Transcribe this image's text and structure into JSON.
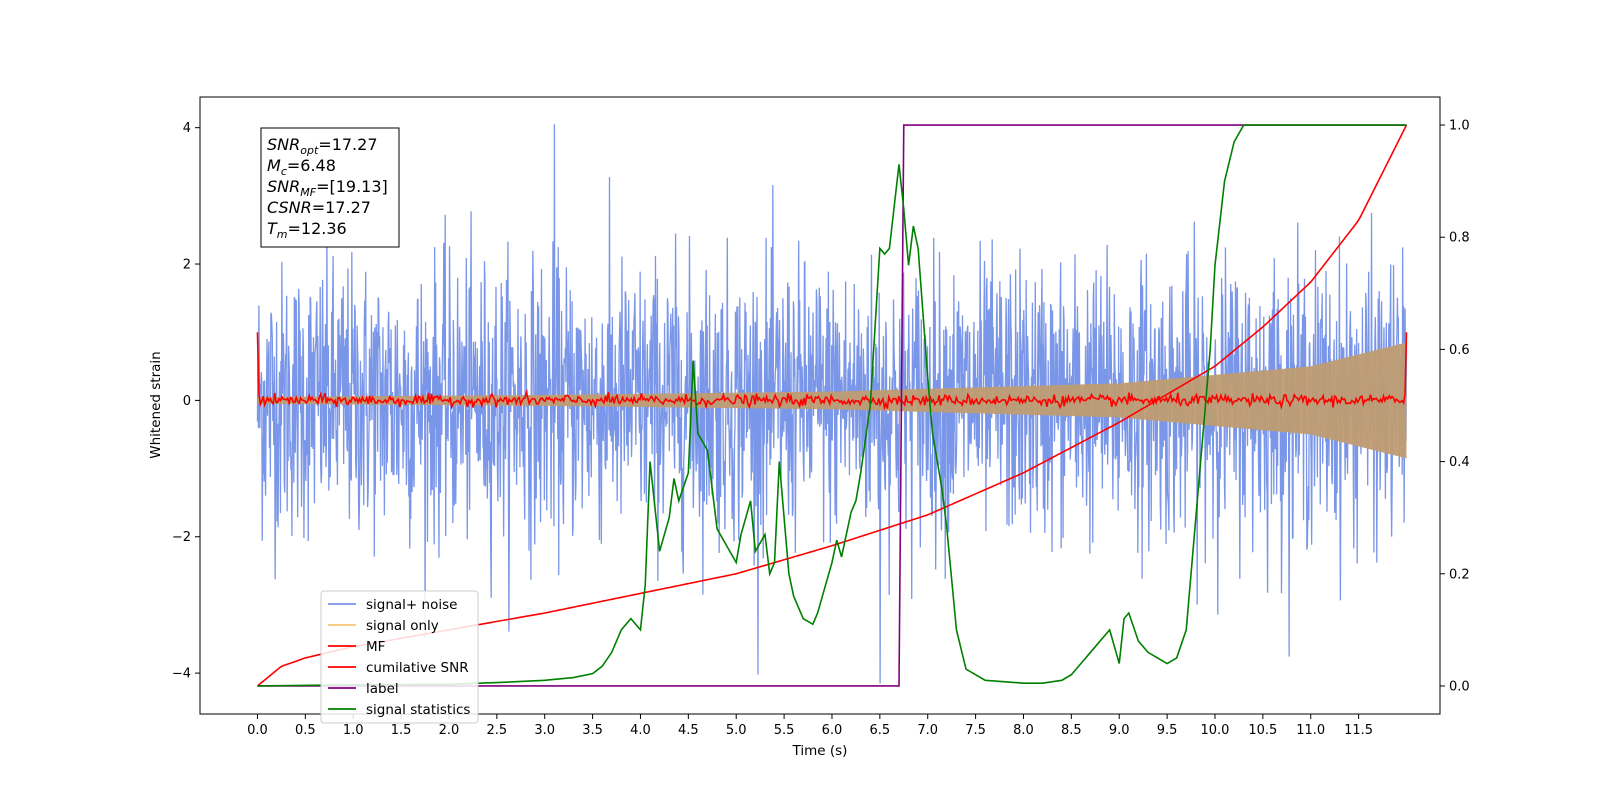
{
  "chart_data": {
    "type": "line",
    "title": "",
    "xlabel": "Time (s)",
    "ylabel": "Whitened strain",
    "y2label": "",
    "xlim": [
      -0.6,
      12.35
    ],
    "ylim": [
      -4.6,
      4.45
    ],
    "y2lim": [
      -0.05,
      1.05
    ],
    "x_ticks": [
      "0.0",
      "0.5",
      "1.0",
      "1.5",
      "2.0",
      "2.5",
      "3.0",
      "3.5",
      "4.0",
      "4.5",
      "5.0",
      "5.5",
      "6.0",
      "6.5",
      "7.0",
      "7.5",
      "8.0",
      "8.5",
      "9.0",
      "9.5",
      "10.0",
      "10.5",
      "11.0",
      "11.5"
    ],
    "y_ticks": [
      "4",
      "2",
      "0",
      "−2",
      "−4"
    ],
    "y2_ticks": [
      "1.0",
      "0.8",
      "0.6",
      "0.4",
      "0.2",
      "0.0"
    ],
    "grid": false,
    "legend_position": "lower-left",
    "annotation": {
      "lines": [
        {
          "var": "SNR",
          "sub": "opt",
          "value": "=17.27"
        },
        {
          "var": "M",
          "sub": "c",
          "value": "=6.48"
        },
        {
          "var": "SNR",
          "sub": "MF",
          "value": "=[19.13]"
        },
        {
          "var": "CSNR",
          "sub": "",
          "value": "=17.27"
        },
        {
          "var": "T",
          "sub": "m",
          "value": "=12.36"
        }
      ]
    },
    "series": [
      {
        "name": "signal+ noise",
        "color": "#7a96e8",
        "axis": "left",
        "kind": "noise",
        "x_range": [
          0,
          12
        ],
        "amplitude_std": 1.0,
        "peak_min": -4.15,
        "peak_max": 4.05
      },
      {
        "name": "signal only",
        "color": "#f5c77a",
        "fill_color": "#bf9c72",
        "axis": "left",
        "kind": "envelope",
        "x": [
          0,
          3,
          6,
          9,
          11,
          12
        ],
        "envelope": [
          0.05,
          0.08,
          0.13,
          0.25,
          0.5,
          0.85
        ]
      },
      {
        "name": "MF",
        "color": "#ff0000",
        "axis": "left",
        "kind": "mf",
        "x_range": [
          0,
          12
        ],
        "baseline": 0.0,
        "endpoints": 1.0
      },
      {
        "name": "cumilative SNR",
        "color": "#ff0000",
        "axis": "right",
        "x": [
          0,
          0.25,
          0.5,
          1.0,
          2.0,
          3.0,
          4.0,
          5.0,
          6.0,
          7.0,
          8.0,
          9.0,
          9.5,
          10.0,
          10.5,
          11.0,
          11.5,
          12.0
        ],
        "y": [
          0.0,
          0.035,
          0.05,
          0.07,
          0.1,
          0.13,
          0.165,
          0.2,
          0.25,
          0.305,
          0.38,
          0.47,
          0.52,
          0.57,
          0.64,
          0.72,
          0.83,
          1.0
        ]
      },
      {
        "name": "label",
        "color": "#800080",
        "axis": "right",
        "x": [
          0,
          6.7,
          6.75,
          12.0
        ],
        "y": [
          0,
          0,
          1,
          1
        ]
      },
      {
        "name": "signal statistics",
        "color": "#008000",
        "axis": "right",
        "x": [
          0,
          1,
          2,
          2.5,
          3,
          3.3,
          3.5,
          3.6,
          3.7,
          3.75,
          3.8,
          3.9,
          4.0,
          4.05,
          4.1,
          4.2,
          4.3,
          4.35,
          4.4,
          4.5,
          4.55,
          4.6,
          4.7,
          4.75,
          4.8,
          4.9,
          5.0,
          5.05,
          5.1,
          5.15,
          5.2,
          5.3,
          5.35,
          5.4,
          5.45,
          5.5,
          5.55,
          5.6,
          5.7,
          5.8,
          5.85,
          5.9,
          6.0,
          6.05,
          6.1,
          6.2,
          6.25,
          6.3,
          6.4,
          6.5,
          6.55,
          6.6,
          6.7,
          6.75,
          6.8,
          6.85,
          6.9,
          7.0,
          7.05,
          7.1,
          7.15,
          7.2,
          7.3,
          7.4,
          7.5,
          7.6,
          8.0,
          8.2,
          8.4,
          8.5,
          8.6,
          8.7,
          8.8,
          8.9,
          8.95,
          9.0,
          9.05,
          9.1,
          9.2,
          9.3,
          9.4,
          9.5,
          9.6,
          9.7,
          9.8,
          9.9,
          9.95,
          10.0,
          10.1,
          10.2,
          10.3,
          10.4,
          10.5,
          11.0,
          12.0
        ],
        "y": [
          0,
          0.002,
          0.003,
          0.006,
          0.01,
          0.015,
          0.022,
          0.035,
          0.06,
          0.08,
          0.1,
          0.12,
          0.1,
          0.18,
          0.4,
          0.24,
          0.3,
          0.37,
          0.33,
          0.38,
          0.58,
          0.45,
          0.42,
          0.35,
          0.28,
          0.25,
          0.22,
          0.27,
          0.3,
          0.33,
          0.24,
          0.27,
          0.2,
          0.22,
          0.4,
          0.3,
          0.2,
          0.16,
          0.12,
          0.11,
          0.13,
          0.16,
          0.22,
          0.26,
          0.23,
          0.31,
          0.33,
          0.38,
          0.5,
          0.78,
          0.77,
          0.78,
          0.93,
          0.85,
          0.75,
          0.82,
          0.78,
          0.55,
          0.45,
          0.4,
          0.35,
          0.28,
          0.1,
          0.03,
          0.02,
          0.01,
          0.005,
          0.005,
          0.01,
          0.02,
          0.04,
          0.06,
          0.08,
          0.1,
          0.07,
          0.04,
          0.12,
          0.13,
          0.08,
          0.06,
          0.05,
          0.04,
          0.05,
          0.1,
          0.3,
          0.5,
          0.6,
          0.75,
          0.9,
          0.97,
          1.0,
          1.0,
          1.0,
          1.0,
          1.0
        ]
      }
    ]
  }
}
